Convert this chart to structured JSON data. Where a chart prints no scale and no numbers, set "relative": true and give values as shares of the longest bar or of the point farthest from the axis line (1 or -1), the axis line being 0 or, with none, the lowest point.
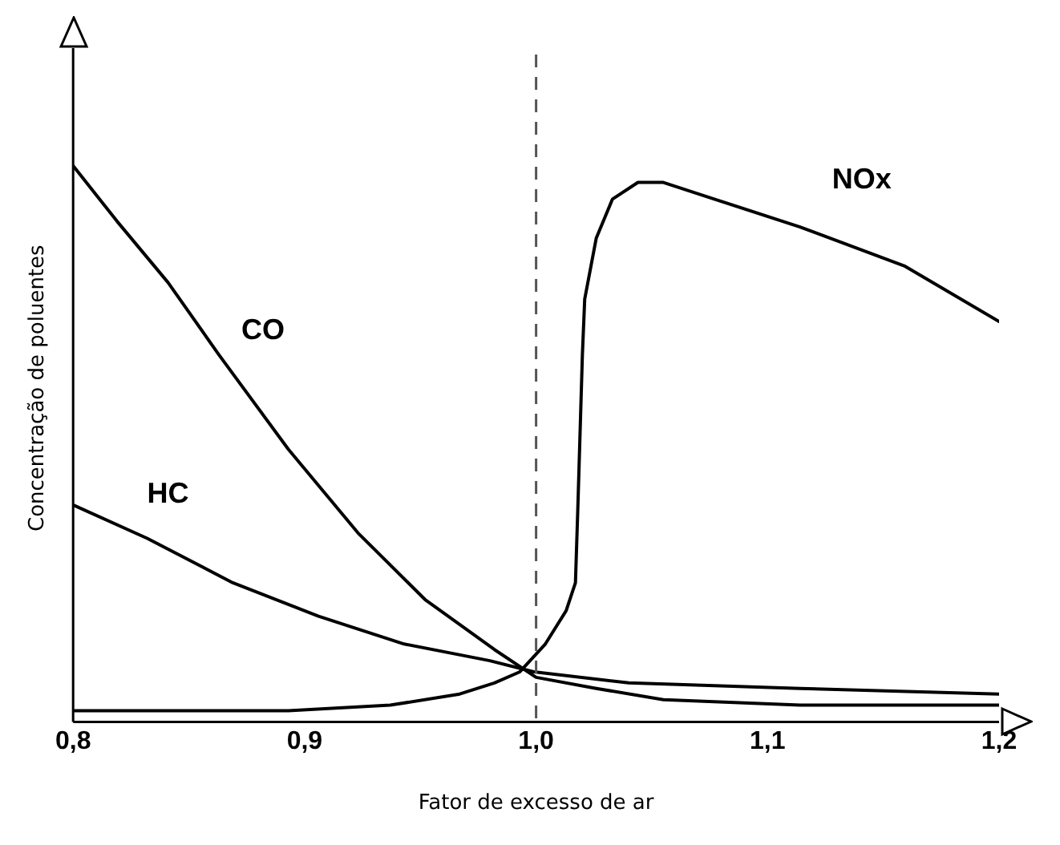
{
  "chart_data": {
    "type": "line",
    "relative": true,
    "xlabel": "Fator de excesso de ar",
    "ylabel": "Concentração de poluentes",
    "xlim": [
      0.8,
      1.2
    ],
    "xticks": [
      {
        "value": 0.8,
        "label": "0,8"
      },
      {
        "value": 0.9,
        "label": "0,9"
      },
      {
        "value": 1.0,
        "label": "1,0"
      },
      {
        "value": 1.1,
        "label": "1,1"
      },
      {
        "value": 1.2,
        "label": "1,2"
      }
    ],
    "grid": false,
    "legend": false,
    "marker": "none",
    "line_style": "solid",
    "ref_lines": [
      {
        "axis": "x",
        "value": 1.0,
        "color": "#555555",
        "line_style": "dashed"
      }
    ],
    "series": [
      {
        "name": "CO",
        "color": "#000000",
        "x": [
          0.8,
          0.819,
          0.841,
          0.863,
          0.893,
          0.923,
          0.952,
          0.982,
          1.0,
          1.026,
          1.055,
          1.114,
          1.2
        ],
        "values": [
          1,
          0.9,
          0.79,
          0.66,
          0.49,
          0.34,
          0.22,
          0.13,
          0.08,
          0.06,
          0.04,
          0.03,
          0.03
        ]
      },
      {
        "name": "HC",
        "color": "#000000",
        "x": [
          0.8,
          0.832,
          0.869,
          0.906,
          0.943,
          0.98,
          0.999,
          1.04,
          1.114,
          1.2
        ],
        "values": [
          0.39,
          0.33,
          0.25,
          0.19,
          0.14,
          0.11,
          0.09,
          0.07,
          0.06,
          0.05
        ]
      },
      {
        "name": "NOx",
        "color": "#000000",
        "x": [
          0.8,
          0.893,
          0.937,
          0.967,
          0.982,
          0.993,
          1.004,
          1.013,
          1.017,
          1.018,
          1.019,
          1.02,
          1.021,
          1.026,
          1.033,
          1.044,
          1.055,
          1.077,
          1.114,
          1.159,
          1.2
        ],
        "values": [
          0.02,
          0.02,
          0.03,
          0.05,
          0.07,
          0.09,
          0.14,
          0.2,
          0.25,
          0.38,
          0.52,
          0.66,
          0.76,
          0.87,
          0.94,
          0.97,
          0.97,
          0.94,
          0.89,
          0.82,
          0.72
        ]
      }
    ]
  }
}
